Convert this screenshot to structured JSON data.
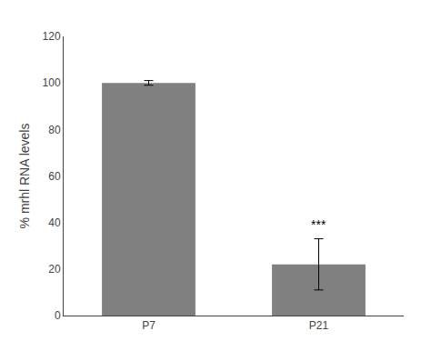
{
  "chart_data": {
    "type": "bar",
    "categories": [
      "P7",
      "P21"
    ],
    "values": [
      100,
      22
    ],
    "errors": [
      1.0,
      11
    ],
    "color": "#808080",
    "ylabel": "% mrhl RNA levels",
    "ylim": [
      0,
      120
    ],
    "yticks": [
      0,
      20,
      40,
      60,
      80,
      100,
      120
    ],
    "grid": false,
    "annotations": [
      {
        "text": "***",
        "category": "P21"
      }
    ]
  }
}
